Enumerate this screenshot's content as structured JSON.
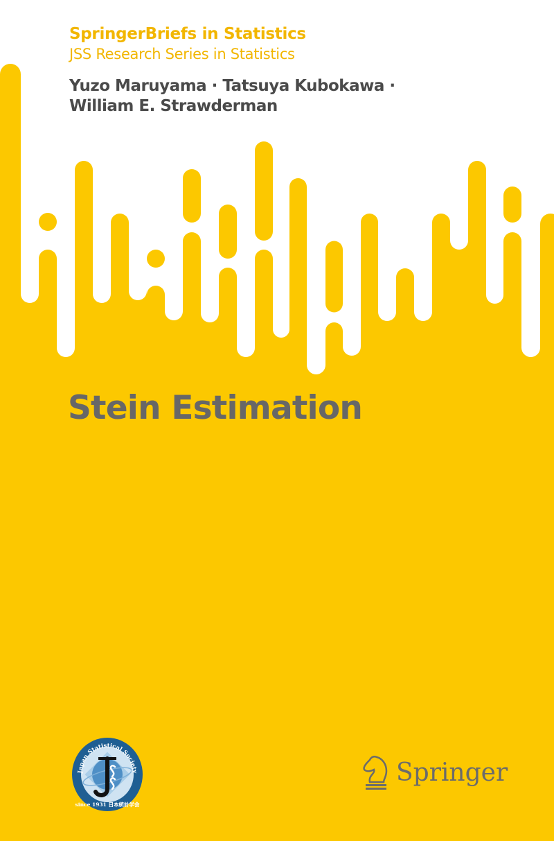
{
  "series": "SpringerBriefs in Statistics",
  "subseries": "JSS Research Series in Statistics",
  "authors": [
    "Yuzo Maruyama · Tatsuya Kubokawa ·",
    "William E. Strawderman"
  ],
  "title": "Stein Estimation",
  "jss_logo": {
    "text_top": "Japan Statistical Society",
    "text_bottom": "since 1931 日本統計学会",
    "letters": "JSS"
  },
  "publisher": "Springer",
  "colors": {
    "background": "#fcc800",
    "series_text": "#f2b600",
    "author_text": "#4a4a4a",
    "title_text": "#676767",
    "publisher_text": "#6b6b6b"
  }
}
